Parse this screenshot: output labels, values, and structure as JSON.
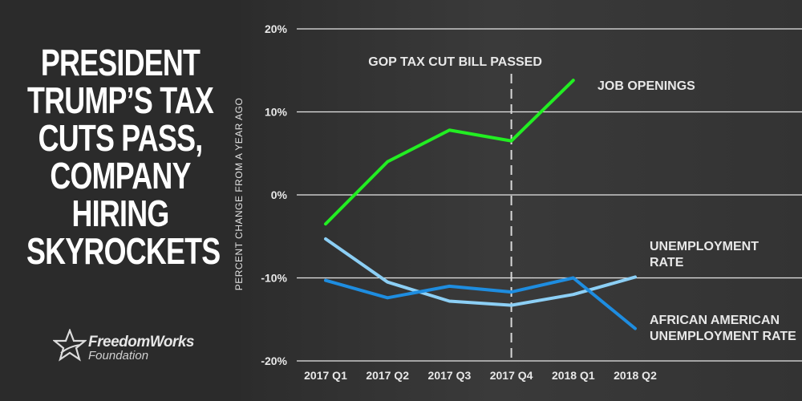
{
  "headline": {
    "lines": [
      "PRESIDENT",
      "TRUMP’S TAX",
      "CUTS PASS,",
      "COMPANY",
      "HIRING",
      "SKYROCKETS"
    ]
  },
  "logo": {
    "name": "FreedomWorks",
    "sub": "Foundation"
  },
  "colors": {
    "background": "#2b2b2b",
    "job_openings": "#22ee22",
    "unemployment_rate": "#8ccff5",
    "african_american_unemployment_rate": "#1e8de0",
    "grid": "#e6e6e6"
  },
  "chart_data": {
    "type": "line",
    "title": "",
    "xlabel": "",
    "ylabel": "PERCENT CHANGE FROM A YEAR AGO",
    "categories": [
      "2017 Q1",
      "2017 Q2",
      "2017 Q3",
      "2017 Q4",
      "2018 Q1",
      "2018 Q2"
    ],
    "ylim": [
      -20,
      20
    ],
    "yticks": [
      20,
      10,
      0,
      -10,
      -20
    ],
    "ytick_labels": [
      "20%",
      "10%",
      "0%",
      "-10%",
      "-20%"
    ],
    "grid": true,
    "annotation": {
      "label": "GOP TAX CUT BILL PASSED",
      "category": "2017 Q4"
    },
    "series": [
      {
        "name": "JOB OPENINGS",
        "label_lines": [
          "JOB OPENINGS"
        ],
        "values": [
          -3.5,
          4.0,
          7.8,
          6.5,
          13.8,
          null
        ],
        "color": "#22ee22"
      },
      {
        "name": "UNEMPLOYMENT RATE",
        "label_lines": [
          "UNEMPLOYMENT",
          "RATE"
        ],
        "values": [
          -5.3,
          -10.5,
          -12.8,
          -13.3,
          -12.0,
          -9.9
        ],
        "color": "#8ccff5"
      },
      {
        "name": "AFRICAN AMERICAN UNEMPLOYMENT RATE",
        "label_lines": [
          "AFRICAN AMERICAN",
          "UNEMPLOYMENT RATE"
        ],
        "values": [
          -10.3,
          -12.4,
          -11.0,
          -11.7,
          -10.0,
          -16.1
        ],
        "color": "#1e8de0"
      }
    ]
  }
}
